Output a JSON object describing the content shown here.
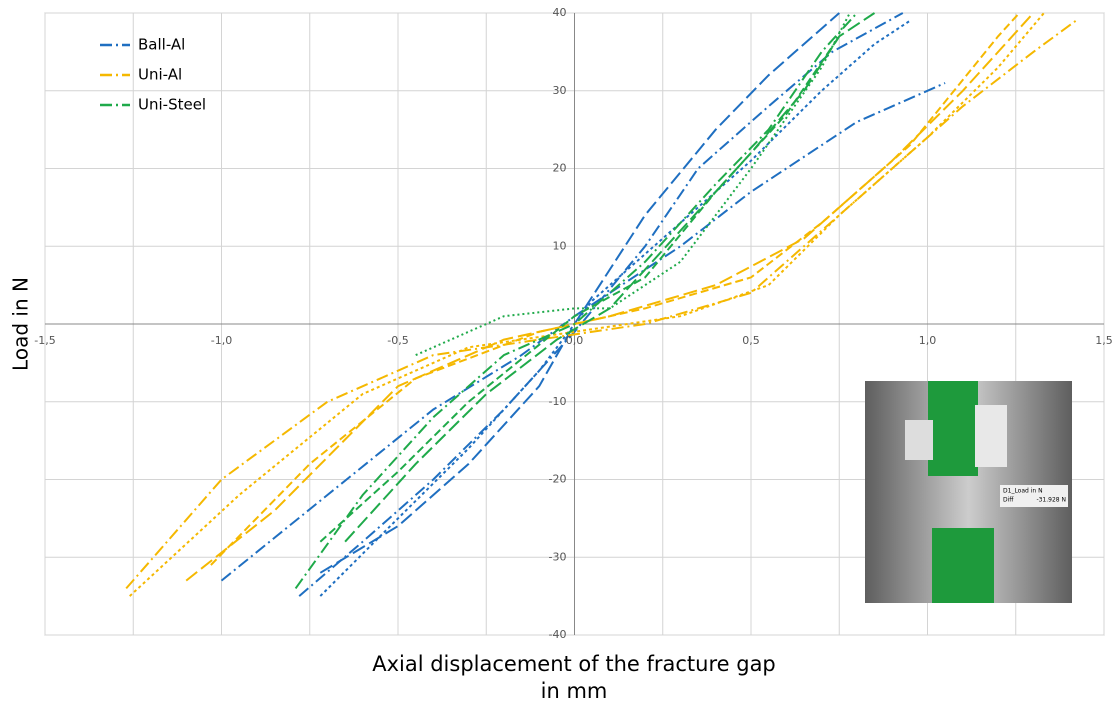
{
  "chart_data": {
    "type": "line",
    "xlabel": [
      "Axial displacement of the fracture gap",
      "in mm"
    ],
    "ylabel": "Load in N",
    "xlim": [
      -1.5,
      1.5
    ],
    "ylim": [
      -40,
      40
    ],
    "xticks": [
      {
        "value": -1.5,
        "label": "-1,5"
      },
      {
        "value": -1.0,
        "label": "-1,0"
      },
      {
        "value": -0.5,
        "label": "-0,5"
      },
      {
        "value": 0,
        "label": "0,0"
      },
      {
        "value": 0.5,
        "label": "0,5"
      },
      {
        "value": 1.0,
        "label": "1,0"
      },
      {
        "value": 1.5,
        "label": "1,5"
      }
    ],
    "xminor": [
      -1.25,
      -0.75,
      -0.25,
      0.25,
      0.75,
      1.25
    ],
    "yticks": [
      -40,
      -30,
      -20,
      -10,
      10,
      20,
      30,
      40
    ],
    "grid": true,
    "legend": "upper-left",
    "series": [
      {
        "name": "Ball-Al",
        "color": "#1f6fc1",
        "curves": [
          {
            "dash": "12 4 2 4",
            "x": [
              -1.0,
              -0.7,
              -0.4,
              -0.15,
              0,
              0.3,
              0.5,
              0.8,
              1.05
            ],
            "values": [
              -33,
              -22,
              -11,
              -4,
              1,
              10,
              17,
              26,
              31
            ]
          },
          {
            "dash": "12 4 2 4",
            "x": [
              -0.78,
              -0.6,
              -0.4,
              -0.2,
              0,
              0.2,
              0.35,
              0.55,
              0.73,
              0.93
            ],
            "values": [
              -35,
              -28,
              -20,
              -11,
              -1,
              10,
              20,
              28,
              35,
              40
            ]
          },
          {
            "dash": "3 3",
            "x": [
              -0.72,
              -0.5,
              -0.3,
              -0.1,
              0.05,
              0.3,
              0.5,
              0.7,
              0.85,
              0.95
            ],
            "values": [
              -35,
              -25,
              -16,
              -6,
              3,
              13,
              21,
              30,
              36,
              39
            ]
          },
          {
            "dash": "14 5",
            "x": [
              -0.72,
              -0.5,
              -0.3,
              -0.1,
              0,
              0.2,
              0.4,
              0.55,
              0.75
            ],
            "values": [
              -32,
              -26,
              -18,
              -8,
              0,
              14,
              25,
              32,
              40
            ]
          }
        ]
      },
      {
        "name": "Uni-Al",
        "color": "#f5b800",
        "curves": [
          {
            "dash": "12 4 2 4",
            "x": [
              -1.27,
              -1.0,
              -0.7,
              -0.4,
              -0.1,
              0.2,
              0.5,
              0.7,
              0.9,
              1.1,
              1.3,
              1.42
            ],
            "values": [
              -34,
              -20,
              -10,
              -4,
              -2,
              0,
              4,
              12,
              20,
              28,
              35,
              39
            ]
          },
          {
            "dash": "3 3",
            "x": [
              -1.26,
              -0.95,
              -0.6,
              -0.3,
              0,
              0.3,
              0.55,
              0.75,
              1.0,
              1.2,
              1.33
            ],
            "values": [
              -35,
              -22,
              -9,
              -3,
              -1,
              1,
              5,
              14,
              24,
              33,
              40
            ]
          },
          {
            "dash": "14 5",
            "x": [
              -1.1,
              -0.85,
              -0.5,
              -0.2,
              0.1,
              0.4,
              0.65,
              0.9,
              1.1,
              1.3
            ],
            "values": [
              -33,
              -24,
              -8,
              -2,
              1,
              5,
              11,
              21,
              30,
              40
            ]
          },
          {
            "dash": "8 4",
            "x": [
              -1.03,
              -0.75,
              -0.45,
              -0.1,
              0.2,
              0.5,
              0.7,
              0.95,
              1.2,
              1.26
            ],
            "values": [
              -31,
              -18,
              -7,
              -1,
              2,
              6,
              13,
              23,
              37,
              40
            ]
          }
        ]
      },
      {
        "name": "Uni-Steel",
        "color": "#1faa4a",
        "curves": [
          {
            "dash": "12 4 2 4",
            "x": [
              -0.79,
              -0.6,
              -0.4,
              -0.2,
              0,
              0.2,
              0.4,
              0.55,
              0.7,
              0.8
            ],
            "values": [
              -34,
              -22,
              -12,
              -4,
              0,
              8,
              18,
              25,
              35,
              40
            ]
          },
          {
            "dash": "14 5",
            "x": [
              -0.65,
              -0.45,
              -0.25,
              -0.05,
              0.1,
              0.3,
              0.5,
              0.65,
              0.75,
              0.85
            ],
            "values": [
              -28,
              -18,
              -9,
              -2,
              2,
              12,
              22,
              30,
              37,
              40
            ]
          },
          {
            "dash": "8 4",
            "x": [
              -0.72,
              -0.5,
              -0.3,
              0,
              0.2,
              0.4,
              0.6,
              0.75
            ],
            "values": [
              -28,
              -19,
              -10,
              1,
              6,
              17,
              27,
              37
            ]
          },
          {
            "dash": "2 3",
            "x": [
              -0.45,
              -0.2,
              0,
              0.1,
              0.3,
              0.5,
              0.7,
              0.78
            ],
            "values": [
              -4,
              1,
              2,
              2,
              8,
              20,
              33,
              40
            ]
          }
        ]
      }
    ],
    "inset": {
      "labels": [
        "D1_Load in N",
        "Diff",
        "-31.928 N"
      ]
    }
  }
}
